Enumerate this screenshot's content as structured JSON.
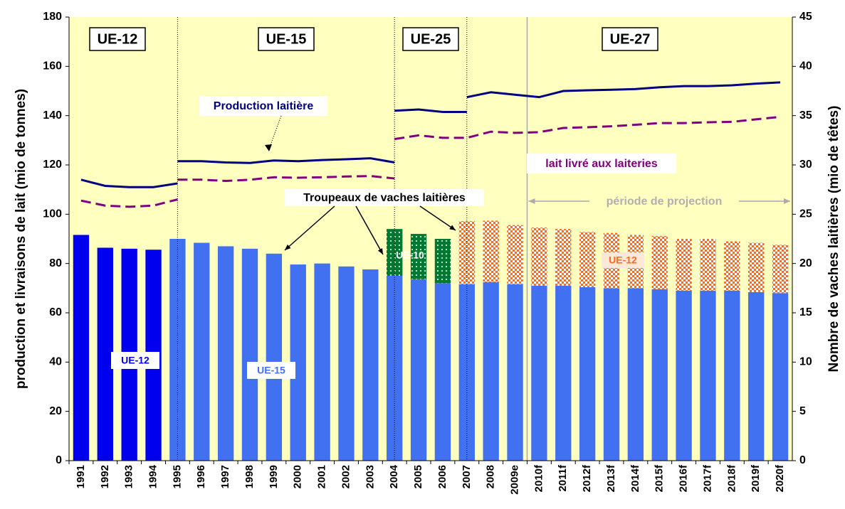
{
  "chart_data": {
    "type": "bar",
    "categories": [
      "1991",
      "1992",
      "1993",
      "1994",
      "1995",
      "1996",
      "1997",
      "1998",
      "1999",
      "2000",
      "2001",
      "2002",
      "2003",
      "2004",
      "2005",
      "2006",
      "2007",
      "2008",
      "2009e",
      "2010f",
      "2011f",
      "2012f",
      "2013f",
      "2014f",
      "2015f",
      "2016f",
      "2017f",
      "2018f",
      "2019f",
      "2020f"
    ],
    "ylabel": "production et livraisons de lait (mio de tonnes)",
    "y2label": "Nombre de vaches laitières (mio de têtes)",
    "ylim": [
      0,
      180
    ],
    "yticks": [
      0,
      20,
      40,
      60,
      80,
      100,
      120,
      140,
      160,
      180
    ],
    "y2lim": [
      0,
      45
    ],
    "y2ticks": [
      0,
      5,
      10,
      15,
      20,
      25,
      30,
      35,
      40,
      45
    ],
    "periods": [
      "UE-12",
      "UE-15",
      "UE-25",
      "UE-27"
    ],
    "projection": "période de projection",
    "herds_note": "Troupeaux de vaches laitières",
    "background": "#ffffc0",
    "series": [
      {
        "name": "UE-12",
        "type": "bar",
        "axis": "y2",
        "color": "#0000ee",
        "pattern": "none",
        "values": [
          22.9,
          21.6,
          21.5,
          21.4,
          null,
          null,
          null,
          null,
          null,
          null,
          null,
          null,
          null,
          null,
          null,
          null,
          null,
          null,
          null,
          null,
          null,
          null,
          null,
          null,
          null,
          null,
          null,
          null,
          null,
          null
        ]
      },
      {
        "name": "UE-15",
        "type": "bar",
        "axis": "y2",
        "color": "#4171f0",
        "pattern": "none",
        "values": [
          null,
          null,
          null,
          null,
          22.5,
          22.1,
          21.75,
          21.5,
          21,
          19.9,
          20,
          19.7,
          19.4,
          18.75,
          18.4,
          18,
          17.9,
          18.1,
          17.9,
          17.75,
          17.75,
          17.6,
          17.5,
          17.5,
          17.4,
          17.25,
          17.25,
          17.25,
          17.1,
          17
        ]
      },
      {
        "name": "UE-10",
        "type": "bar",
        "axis": "y2",
        "color": "#007a33",
        "pattern": "dots",
        "values": [
          null,
          null,
          null,
          null,
          null,
          null,
          null,
          null,
          null,
          null,
          null,
          null,
          null,
          4.75,
          4.6,
          4.5,
          null,
          null,
          null,
          null,
          null,
          null,
          null,
          null,
          null,
          null,
          null,
          null,
          null,
          null
        ]
      },
      {
        "name": "UE-12",
        "type": "bar",
        "axis": "y2",
        "color": "#ff6a1a",
        "pattern": "check",
        "values": [
          null,
          null,
          null,
          null,
          null,
          null,
          null,
          null,
          null,
          null,
          null,
          null,
          null,
          null,
          null,
          null,
          6.4,
          6.25,
          6,
          5.9,
          5.75,
          5.6,
          5.6,
          5.4,
          5.4,
          5.25,
          5.25,
          5,
          5,
          4.9
        ]
      },
      {
        "name": "Production laitière",
        "type": "line",
        "color": "#000080",
        "dashed": false,
        "pieces": [
          [
            114,
            111.5,
            111,
            111,
            112.5,
            null,
            null,
            null,
            null,
            null,
            null,
            null,
            null,
            null,
            null,
            null,
            null,
            null,
            null,
            null,
            null,
            null,
            null,
            null,
            null,
            null,
            null,
            null,
            null,
            null
          ],
          [
            null,
            null,
            null,
            null,
            121.5,
            121.5,
            121,
            120.8,
            121.8,
            121.5,
            122,
            122.3,
            122.7,
            121,
            null,
            null,
            null,
            null,
            null,
            null,
            null,
            null,
            null,
            null,
            null,
            null,
            null,
            null,
            null,
            null
          ],
          [
            null,
            null,
            null,
            null,
            null,
            null,
            null,
            null,
            null,
            null,
            null,
            null,
            null,
            142,
            142.5,
            141.5,
            141.5,
            null,
            null,
            null,
            null,
            null,
            null,
            null,
            null,
            null,
            null,
            null,
            null,
            null
          ],
          [
            null,
            null,
            null,
            null,
            null,
            null,
            null,
            null,
            null,
            null,
            null,
            null,
            null,
            null,
            null,
            null,
            147.5,
            149.5,
            148.5,
            147.5,
            150,
            150.3,
            150.5,
            150.8,
            151.5,
            152,
            152,
            152.3,
            153,
            153.5
          ]
        ]
      },
      {
        "name": "lait livré aux laiteries",
        "type": "line",
        "color": "#800080",
        "dashed": true,
        "pieces": [
          [
            105.5,
            103.5,
            103,
            103.5,
            106,
            null,
            null,
            null,
            null,
            null,
            null,
            null,
            null,
            null,
            null,
            null,
            null,
            null,
            null,
            null,
            null,
            null,
            null,
            null,
            null,
            null,
            null,
            null,
            null,
            null
          ],
          [
            null,
            null,
            null,
            null,
            114,
            114,
            113.5,
            114,
            115,
            114.8,
            115,
            115.3,
            115.5,
            114.5,
            null,
            null,
            null,
            null,
            null,
            null,
            null,
            null,
            null,
            null,
            null,
            null,
            null,
            null,
            null,
            null
          ],
          [
            null,
            null,
            null,
            null,
            null,
            null,
            null,
            null,
            null,
            null,
            null,
            null,
            null,
            130.5,
            132,
            131,
            131,
            133.5,
            133,
            133.3,
            135,
            135.3,
            135.7,
            136.3,
            137,
            137,
            137.3,
            137.5,
            138.5,
            139.5
          ]
        ]
      }
    ]
  }
}
